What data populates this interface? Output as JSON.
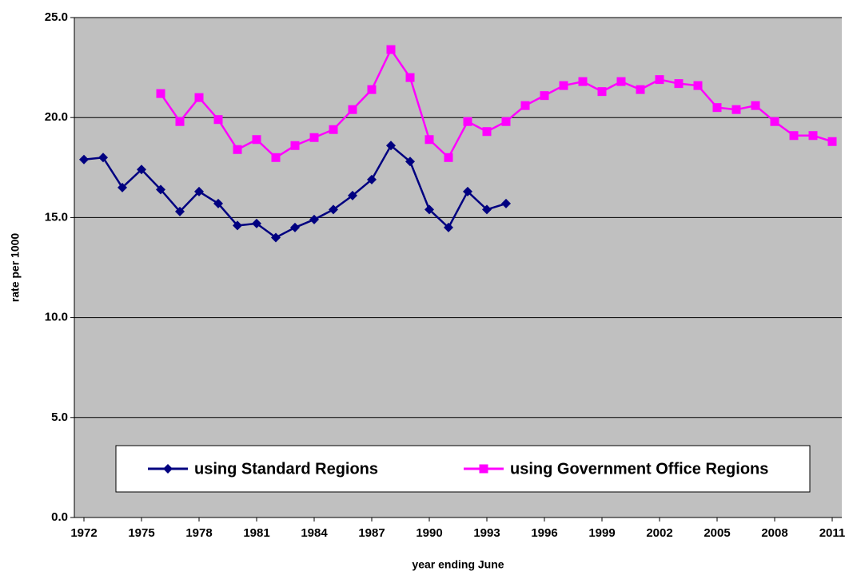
{
  "chart_data": {
    "type": "line",
    "x": [
      1972,
      1973,
      1974,
      1975,
      1976,
      1977,
      1978,
      1979,
      1980,
      1981,
      1982,
      1983,
      1984,
      1985,
      1986,
      1987,
      1988,
      1989,
      1990,
      1991,
      1992,
      1993,
      1994,
      1995,
      1996,
      1997,
      1998,
      1999,
      2000,
      2001,
      2002,
      2003,
      2004,
      2005,
      2006,
      2007,
      2008,
      2009,
      2010,
      2011
    ],
    "xlim": [
      1971.5,
      2011.5
    ],
    "xticks": [
      1972,
      1975,
      1978,
      1981,
      1984,
      1987,
      1990,
      1993,
      1996,
      1999,
      2002,
      2005,
      2008,
      2011
    ],
    "ylim": [
      0,
      25
    ],
    "yticks": [
      {
        "value": 0,
        "label": "0.0"
      },
      {
        "value": 5,
        "label": "5.0"
      },
      {
        "value": 10,
        "label": "10.0"
      },
      {
        "value": 15,
        "label": "15.0"
      },
      {
        "value": 20,
        "label": "20.0"
      },
      {
        "value": 25,
        "label": "25.0"
      }
    ],
    "x_label": "year ending June",
    "y_label": "rate per 1000",
    "grid": true,
    "legend": "bottom",
    "series": [
      {
        "name": "using Standard Regions",
        "color": "#000080",
        "marker": "diamond",
        "values": [
          17.9,
          18.0,
          16.5,
          17.4,
          16.4,
          15.3,
          16.3,
          15.7,
          14.6,
          14.7,
          14.0,
          14.5,
          14.9,
          15.4,
          16.1,
          16.9,
          18.6,
          17.8,
          15.4,
          14.5,
          16.3,
          15.4,
          15.7,
          null,
          null,
          null,
          null,
          null,
          null,
          null,
          null,
          null,
          null,
          null,
          null,
          null,
          null,
          null,
          null,
          null
        ]
      },
      {
        "name": "using Government Office Regions",
        "color": "#ff00ff",
        "marker": "square",
        "values": [
          null,
          null,
          null,
          null,
          21.2,
          19.8,
          21.0,
          19.9,
          18.4,
          18.9,
          18.0,
          18.6,
          19.0,
          19.4,
          20.4,
          21.4,
          23.4,
          22.0,
          18.9,
          18.0,
          19.8,
          19.3,
          19.8,
          20.6,
          21.1,
          21.6,
          21.8,
          21.3,
          21.8,
          21.4,
          21.9,
          21.7,
          21.6,
          20.5,
          20.4,
          20.6,
          19.8,
          19.1,
          19.1,
          18.8
        ]
      }
    ]
  }
}
